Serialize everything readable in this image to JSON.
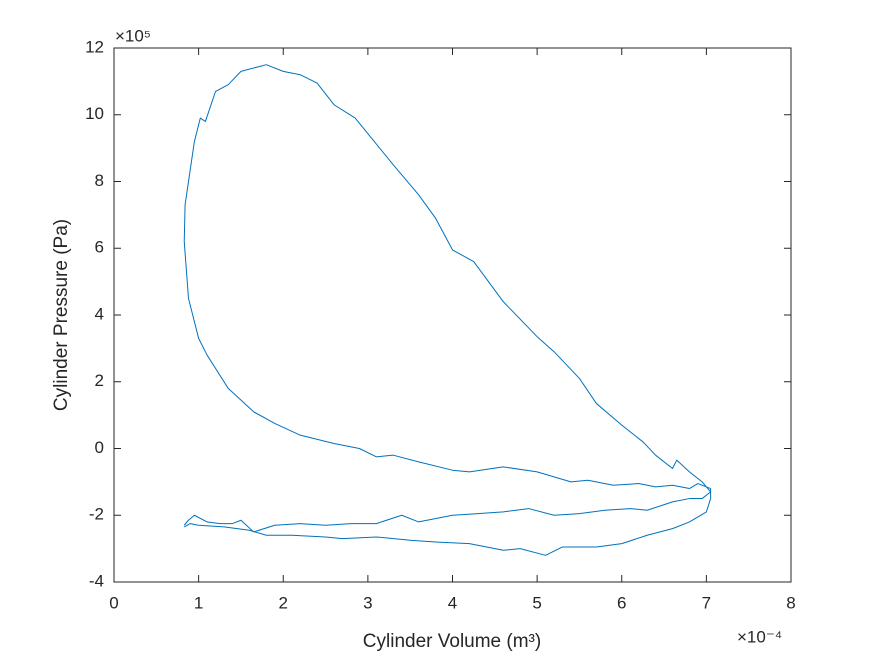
{
  "chart_data": {
    "type": "line",
    "x_label": "Cylinder Volume (m³)",
    "y_label": "Cylinder Pressure (Pa)",
    "x_multiplier": "×10⁻⁴",
    "y_multiplier": "×10⁵",
    "xlim": [
      0,
      8
    ],
    "xticks": [
      0,
      1,
      2,
      3,
      4,
      5,
      6,
      7,
      8
    ],
    "ylim": [
      -4,
      12
    ],
    "yticks": [
      -4,
      -2,
      0,
      2,
      4,
      6,
      8,
      10,
      12
    ],
    "grid": false,
    "x": [
      0.83,
      0.9,
      1.0,
      1.3,
      1.6,
      1.8,
      2.1,
      2.5,
      2.7,
      3.1,
      3.5,
      3.8,
      4.2,
      4.6,
      4.8,
      5.1,
      5.3,
      5.7,
      6.0,
      6.3,
      6.6,
      6.8,
      7.0,
      7.05,
      7.05,
      6.9,
      6.8,
      6.6,
      6.4,
      6.2,
      5.9,
      5.6,
      5.4,
      5.0,
      4.6,
      4.2,
      4.0,
      3.6,
      3.3,
      3.1,
      2.9,
      2.6,
      2.2,
      1.9,
      1.65,
      1.35,
      1.1,
      1.0,
      0.88,
      0.83,
      0.84,
      0.95,
      1.02,
      1.08,
      1.2,
      1.35,
      1.5,
      1.8,
      2.0,
      2.2,
      2.4,
      2.6,
      2.85,
      3.3,
      3.6,
      3.8,
      4.0,
      4.25,
      4.6,
      5.0,
      5.2,
      5.5,
      5.7,
      6.0,
      6.25,
      6.4,
      6.6,
      6.65,
      6.8,
      6.95,
      7.05,
      6.95,
      6.8,
      6.6,
      6.3,
      6.1,
      5.8,
      5.5,
      5.2,
      4.9,
      4.6,
      4.3,
      4.0,
      3.6,
      3.4,
      3.1,
      2.8,
      2.5,
      2.2,
      1.9,
      1.65,
      1.5,
      1.4,
      1.25,
      1.1,
      0.95,
      0.88,
      0.83
    ],
    "series": [
      {
        "color": "#0072bd",
        "values": [
          -2.35,
          -2.25,
          -2.3,
          -2.35,
          -2.45,
          -2.6,
          -2.6,
          -2.65,
          -2.7,
          -2.65,
          -2.75,
          -2.8,
          -2.85,
          -3.05,
          -3.0,
          -3.2,
          -2.95,
          -2.95,
          -2.85,
          -2.6,
          -2.4,
          -2.2,
          -1.9,
          -1.5,
          -1.2,
          -1.05,
          -1.2,
          -1.1,
          -1.15,
          -1.05,
          -1.1,
          -0.95,
          -1.0,
          -0.7,
          -0.55,
          -0.7,
          -0.65,
          -0.4,
          -0.2,
          -0.25,
          0.0,
          0.15,
          0.4,
          0.75,
          1.1,
          1.8,
          2.8,
          3.3,
          4.5,
          6.2,
          7.3,
          9.2,
          9.9,
          9.8,
          10.7,
          10.9,
          11.3,
          11.5,
          11.3,
          11.2,
          10.95,
          10.3,
          9.9,
          8.5,
          7.6,
          6.9,
          5.95,
          5.6,
          4.4,
          3.35,
          2.9,
          2.1,
          1.35,
          0.7,
          0.2,
          -0.2,
          -0.6,
          -0.35,
          -0.7,
          -1.0,
          -1.3,
          -1.5,
          -1.5,
          -1.6,
          -1.85,
          -1.8,
          -1.85,
          -1.95,
          -2.0,
          -1.8,
          -1.9,
          -1.95,
          -2.0,
          -2.2,
          -2.0,
          -2.25,
          -2.25,
          -2.3,
          -2.25,
          -2.3,
          -2.5,
          -2.15,
          -2.25,
          -2.25,
          -2.2,
          -2.0,
          -2.15,
          -2.3
        ]
      }
    ]
  }
}
